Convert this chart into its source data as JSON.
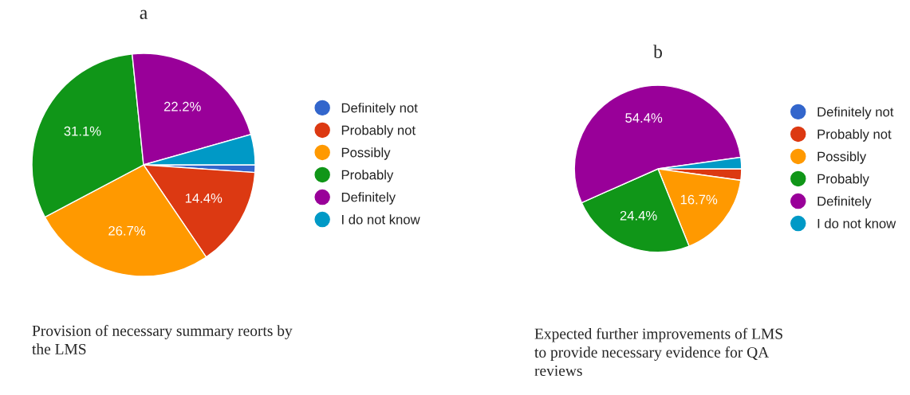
{
  "chart_data": [
    {
      "type": "pie",
      "title": "a",
      "categories": [
        "Definitely not",
        "Probably not",
        "Possibly",
        "Probably",
        "Definitely",
        "I do not know"
      ],
      "values": [
        1.1,
        14.4,
        26.7,
        31.1,
        22.2,
        4.4
      ],
      "colors": [
        "#3366cc",
        "#dc3912",
        "#ff9900",
        "#109618",
        "#990099",
        "#0099c6"
      ],
      "value_labels": [
        null,
        "14.4%",
        "26.7%",
        "31.1%",
        "22.2%",
        null
      ],
      "legend": "right",
      "annotations": [
        "Provision of necessary summary reorts by\nthe LMS"
      ]
    },
    {
      "type": "pie",
      "title": "b",
      "categories": [
        "Definitely not",
        "Probably not",
        "Possibly",
        "Probably",
        "Definitely",
        "I do not know"
      ],
      "values": [
        0,
        2.2,
        16.7,
        24.4,
        54.4,
        2.2
      ],
      "colors": [
        "#3366cc",
        "#dc3912",
        "#ff9900",
        "#109618",
        "#990099",
        "#0099c6"
      ],
      "value_labels": [
        null,
        null,
        "16.7%",
        "24.4%",
        "54.4%",
        null
      ],
      "legend": "right",
      "annotations": [
        "Expected further improvements of LMS\nto provide necessary evidence for QA\nreviews"
      ]
    }
  ]
}
